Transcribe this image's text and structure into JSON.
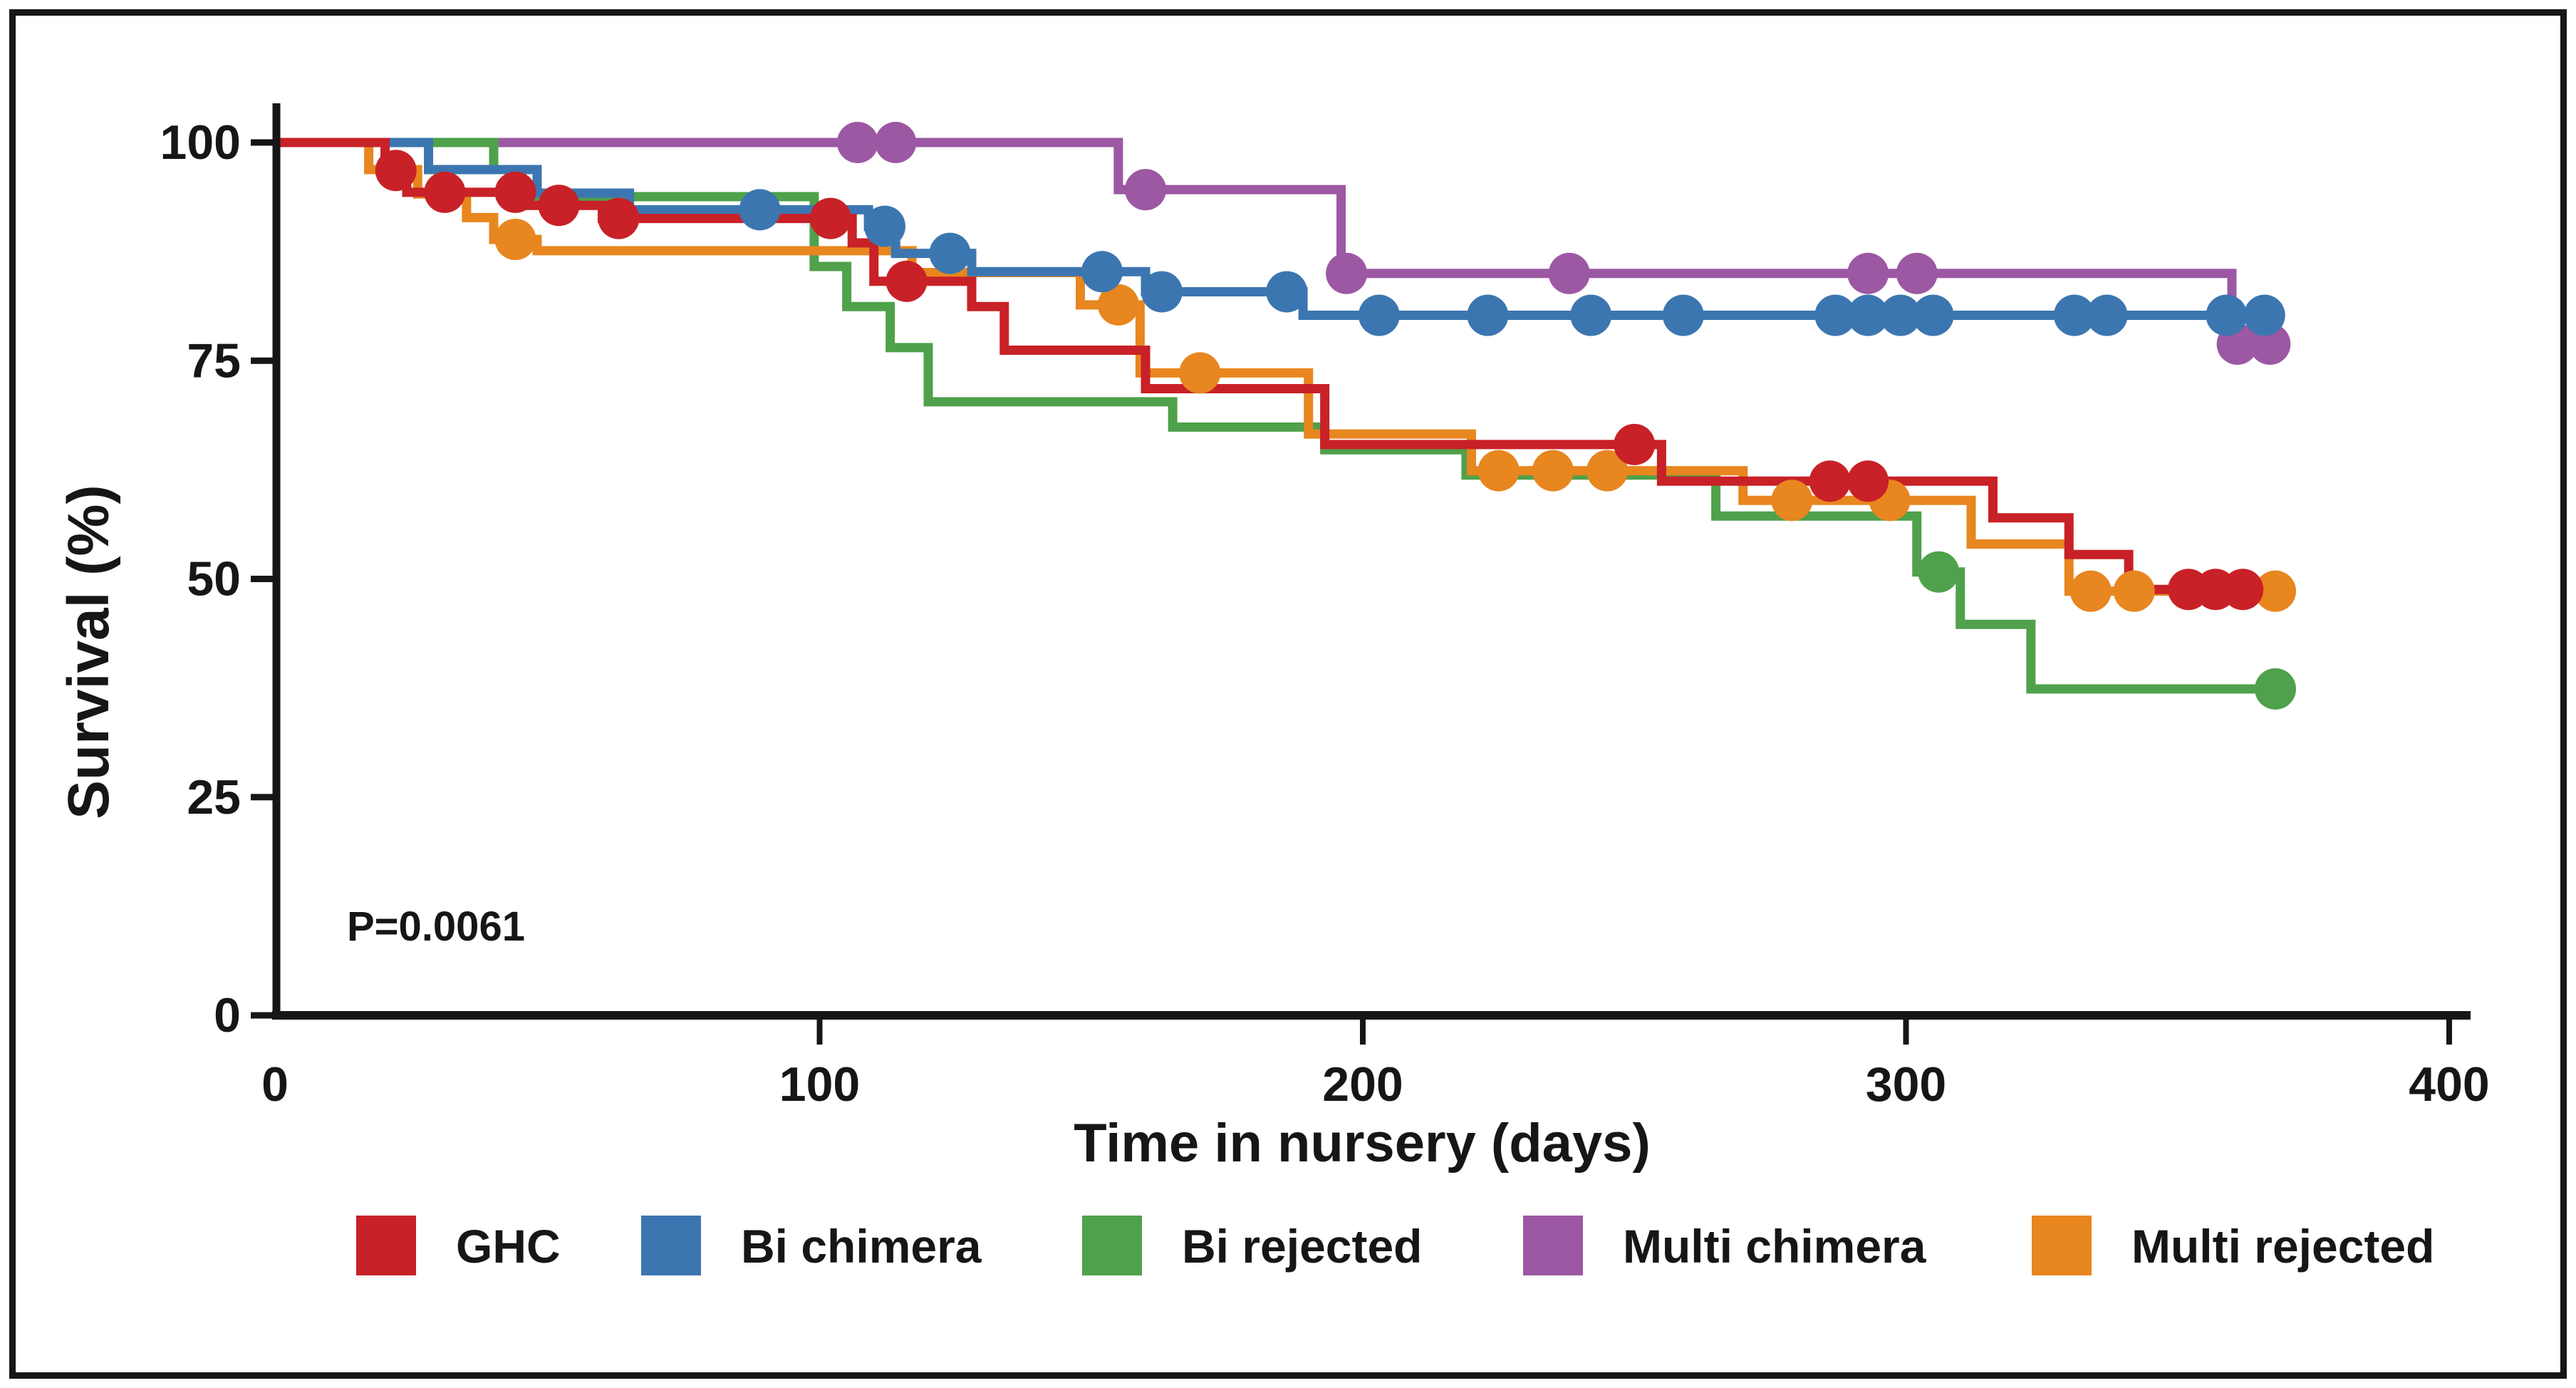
{
  "figure": {
    "background_color": "#ffffff",
    "frame_color": "#161616",
    "text_color": "#161616",
    "p_value": "P=0.0061"
  },
  "chart_data": {
    "type": "line",
    "subtype": "kaplan-meier-survival-step",
    "title": "",
    "xlabel": "Time in nursery (days)",
    "ylabel": "Survival (%)",
    "xlim": [
      0,
      400
    ],
    "ylim": [
      0,
      100
    ],
    "xticks": [
      0,
      100,
      200,
      300,
      400
    ],
    "yticks": [
      0,
      25,
      50,
      75,
      100
    ],
    "grid": false,
    "legend_position": "bottom",
    "annotation": "P=0.0061",
    "series": [
      {
        "name": "GHC",
        "color": "#c82127",
        "end_day": 365,
        "steps": [
          [
            0,
            100
          ],
          [
            20,
            96.8
          ],
          [
            24,
            94.3
          ],
          [
            46,
            92.8
          ],
          [
            60,
            91.3
          ],
          [
            106,
            88.5
          ],
          [
            110,
            84.1
          ],
          [
            128,
            81.2
          ],
          [
            134,
            76.2
          ],
          [
            160,
            71.8
          ],
          [
            193,
            65.4
          ],
          [
            255,
            61.2
          ],
          [
            316,
            57.0
          ],
          [
            330,
            52.8
          ],
          [
            341,
            48.8
          ]
        ],
        "censor_marks": [
          [
            22,
            96.8
          ],
          [
            31,
            94.3
          ],
          [
            44,
            94.3
          ],
          [
            52,
            92.8
          ],
          [
            63,
            91.3
          ],
          [
            102,
            91.3
          ],
          [
            116,
            84.1
          ],
          [
            250,
            65.4
          ],
          [
            286,
            61.2
          ],
          [
            293,
            61.2
          ],
          [
            352,
            48.8
          ],
          [
            357,
            48.8
          ],
          [
            362,
            48.8
          ]
        ]
      },
      {
        "name": "Bi chimera",
        "color": "#3c76b0",
        "end_day": 366,
        "steps": [
          [
            0,
            100
          ],
          [
            28,
            96.9
          ],
          [
            48,
            94.2
          ],
          [
            65,
            92.3
          ],
          [
            109,
            90.4
          ],
          [
            114,
            87.3
          ],
          [
            128,
            85.2
          ],
          [
            160,
            82.9
          ],
          [
            189,
            80.2
          ]
        ],
        "censor_marks": [
          [
            89,
            92.3
          ],
          [
            112,
            90.4
          ],
          [
            124,
            87.3
          ],
          [
            152,
            85.2
          ],
          [
            163,
            82.9
          ],
          [
            186,
            82.9
          ],
          [
            203,
            80.2
          ],
          [
            223,
            80.2
          ],
          [
            242,
            80.2
          ],
          [
            259,
            80.2
          ],
          [
            287,
            80.2
          ],
          [
            293,
            80.2
          ],
          [
            299,
            80.2
          ],
          [
            305,
            80.2
          ],
          [
            331,
            80.2
          ],
          [
            337,
            80.2
          ],
          [
            359,
            80.2
          ],
          [
            366,
            80.2
          ]
        ]
      },
      {
        "name": "Bi rejected",
        "color": "#4fa14b",
        "end_day": 368,
        "steps": [
          [
            0,
            100
          ],
          [
            40,
            96.9
          ],
          [
            43,
            93.8
          ],
          [
            99,
            85.8
          ],
          [
            105,
            81.2
          ],
          [
            113,
            76.5
          ],
          [
            120,
            70.3
          ],
          [
            165,
            67.4
          ],
          [
            193,
            64.8
          ],
          [
            219,
            61.9
          ],
          [
            265,
            57.2
          ],
          [
            302,
            50.8
          ],
          [
            310,
            44.8
          ],
          [
            323,
            37.4
          ]
        ],
        "censor_marks": [
          [
            306,
            50.8
          ],
          [
            368,
            37.4
          ]
        ]
      },
      {
        "name": "Multi chimera",
        "color": "#9c58a3",
        "end_day": 368,
        "steps": [
          [
            0,
            100
          ],
          [
            155,
            94.6
          ],
          [
            196,
            85.0
          ],
          [
            360,
            76.9
          ]
        ],
        "censor_marks": [
          [
            107,
            100
          ],
          [
            114,
            100
          ],
          [
            160,
            94.6
          ],
          [
            197,
            85.0
          ],
          [
            238,
            85.0
          ],
          [
            293,
            85.0
          ],
          [
            302,
            85.0
          ],
          [
            361,
            76.9
          ],
          [
            367,
            76.9
          ]
        ]
      },
      {
        "name": "Multi rejected",
        "color": "#e8861f",
        "end_day": 368,
        "steps": [
          [
            0,
            100
          ],
          [
            17,
            96.9
          ],
          [
            26,
            94.1
          ],
          [
            35,
            91.4
          ],
          [
            40,
            88.9
          ],
          [
            48,
            87.6
          ],
          [
            117,
            85.1
          ],
          [
            148,
            81.4
          ],
          [
            159,
            73.6
          ],
          [
            190,
            66.6
          ],
          [
            220,
            62.4
          ],
          [
            270,
            59.0
          ],
          [
            312,
            54.0
          ],
          [
            330,
            48.6
          ]
        ],
        "censor_marks": [
          [
            44,
            88.9
          ],
          [
            155,
            81.4
          ],
          [
            170,
            73.6
          ],
          [
            225,
            62.4
          ],
          [
            235,
            62.4
          ],
          [
            245,
            62.4
          ],
          [
            279,
            59.0
          ],
          [
            297,
            59.0
          ],
          [
            334,
            48.6
          ],
          [
            342,
            48.6
          ],
          [
            368,
            48.6
          ]
        ]
      }
    ]
  },
  "legend": {
    "items": [
      {
        "label": "GHC",
        "color": "#c82127"
      },
      {
        "label": "Bi chimera",
        "color": "#3c76b0"
      },
      {
        "label": "Bi rejected",
        "color": "#4fa14b"
      },
      {
        "label": "Multi chimera",
        "color": "#9c58a3"
      },
      {
        "label": "Multi rejected",
        "color": "#e8861f"
      }
    ]
  }
}
